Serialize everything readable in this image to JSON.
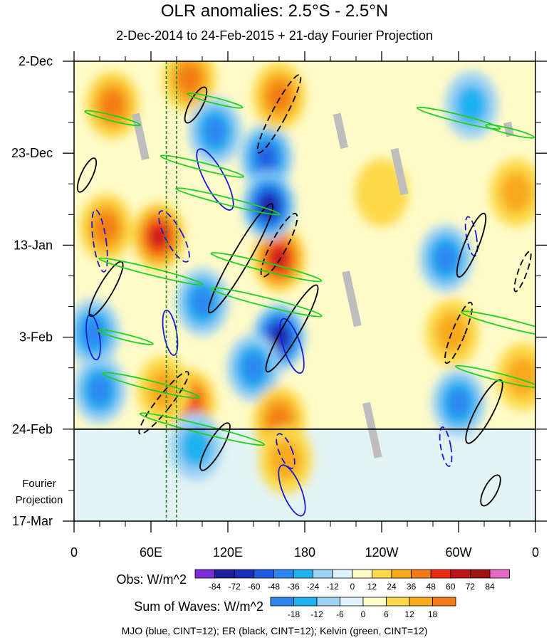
{
  "chart_data": {
    "type": "heatmap",
    "title": "OLR anomalies: 2.5°S - 2.5°N",
    "subtitle": "2-Dec-2014 to 24-Feb-2015 + 21-day Fourier Projection",
    "x_tick_labels": [
      "0",
      "60E",
      "120E",
      "180",
      "120W",
      "60W",
      "0"
    ],
    "x_ticks_lon": [
      0,
      60,
      120,
      180,
      240,
      300,
      360
    ],
    "xlim": [
      0,
      360
    ],
    "y_tick_labels": [
      "2-Dec",
      "23-Dec",
      "13-Jan",
      "3-Feb",
      "24-Feb",
      "17-Mar"
    ],
    "y_ticks_day": [
      0,
      21,
      42,
      63,
      84,
      105
    ],
    "ylim_days": [
      0,
      105
    ],
    "projection_start_day": 84,
    "projection_label_lines": [
      "Fourier",
      "Projection"
    ],
    "reference_lines_lon": [
      72,
      80
    ],
    "reference_line_color": "#2e8b2e",
    "legend_obs": {
      "label": "Obs: W/m^2",
      "values": [
        -84,
        -72,
        -60,
        -48,
        -36,
        -24,
        -12,
        0,
        12,
        24,
        36,
        48,
        60,
        72,
        84
      ],
      "colors": [
        "#7b2cd8",
        "#1e1e9c",
        "#1a2fb8",
        "#1f5be0",
        "#2e86f0",
        "#1fb1f0",
        "#9ed2f5",
        "#dff2fb",
        "#fffbc8",
        "#fcd94a",
        "#f8a91c",
        "#f27a18",
        "#ee2a12",
        "#c2121a",
        "#9c1414",
        "#e868c8"
      ]
    },
    "legend_waves": {
      "label": "Sum of Waves: W/m^2",
      "values": [
        -18,
        -12,
        -6,
        0,
        6,
        12,
        18
      ],
      "colors": [
        "#2e86f0",
        "#1fb1f0",
        "#9ed2f5",
        "#dff2fb",
        "#fffbc8",
        "#fcd94a",
        "#f8a91c",
        "#f27a18"
      ]
    },
    "wave_colors": {
      "mjo": "#1a1ad6",
      "er": "#000000",
      "kelvin": "#1fd11f"
    },
    "anomaly_blobs": [
      {
        "lon": 30,
        "day": 10,
        "v": 30
      },
      {
        "lon": 90,
        "day": 4,
        "v": 36
      },
      {
        "lon": 110,
        "day": 16,
        "v": -36
      },
      {
        "lon": 150,
        "day": 22,
        "v": -48
      },
      {
        "lon": 160,
        "day": 8,
        "v": 30
      },
      {
        "lon": 66,
        "day": 40,
        "v": 60
      },
      {
        "lon": 25,
        "day": 38,
        "v": 36
      },
      {
        "lon": 160,
        "day": 45,
        "v": 60
      },
      {
        "lon": 152,
        "day": 33,
        "v": -72
      },
      {
        "lon": 100,
        "day": 55,
        "v": -30
      },
      {
        "lon": 160,
        "day": 63,
        "v": -72
      },
      {
        "lon": 140,
        "day": 70,
        "v": -36
      },
      {
        "lon": 15,
        "day": 62,
        "v": -36
      },
      {
        "lon": 20,
        "day": 75,
        "v": -30
      },
      {
        "lon": 90,
        "day": 78,
        "v": 48
      },
      {
        "lon": 160,
        "day": 82,
        "v": 36
      },
      {
        "lon": 70,
        "day": 75,
        "v": 24
      },
      {
        "lon": 290,
        "day": 45,
        "v": -36
      },
      {
        "lon": 295,
        "day": 62,
        "v": 24
      },
      {
        "lon": 300,
        "day": 78,
        "v": -30
      },
      {
        "lon": 345,
        "day": 30,
        "v": 24
      },
      {
        "lon": 350,
        "day": 72,
        "v": 18
      },
      {
        "lon": 310,
        "day": 10,
        "v": -24
      },
      {
        "lon": 240,
        "day": 30,
        "v": 12
      },
      {
        "lon": 165,
        "day": 91,
        "v": 24
      },
      {
        "lon": 95,
        "day": 88,
        "v": -18
      }
    ],
    "mjo_contours": [
      {
        "lon": 110,
        "day": 27,
        "rx": 14,
        "ry": 48,
        "rot": -28,
        "dashed": false
      },
      {
        "lon": 78,
        "day": 40,
        "rx": 12,
        "ry": 40,
        "rot": -28,
        "dashed": true
      },
      {
        "lon": 15,
        "day": 63,
        "rx": 9,
        "ry": 32,
        "rot": -8,
        "dashed": false
      },
      {
        "lon": 20,
        "day": 41,
        "rx": 9,
        "ry": 44,
        "rot": -8,
        "dashed": true
      },
      {
        "lon": 75,
        "day": 62,
        "rx": 9,
        "ry": 32,
        "rot": -10,
        "dashed": false
      },
      {
        "lon": 170,
        "day": 98,
        "rx": 13,
        "ry": 38,
        "rot": -22,
        "dashed": false
      },
      {
        "lon": 165,
        "day": 89,
        "rx": 9,
        "ry": 26,
        "rot": -22,
        "dashed": true
      },
      {
        "lon": 290,
        "day": 88,
        "rx": 7,
        "ry": 28,
        "rot": -10,
        "dashed": true
      },
      {
        "lon": 310,
        "day": 40,
        "rx": 7,
        "ry": 28,
        "rot": -10,
        "dashed": true
      },
      {
        "lon": 170,
        "day": 65,
        "rx": 12,
        "ry": 40,
        "rot": -18,
        "dashed": false
      }
    ],
    "er_contours": [
      {
        "lon": 95,
        "day": 10,
        "rx": 9,
        "ry": 28,
        "rot": 28,
        "dashed": false
      },
      {
        "lon": 160,
        "day": 12,
        "rx": 10,
        "ry": 62,
        "rot": 28,
        "dashed": true
      },
      {
        "lon": 160,
        "day": 42,
        "rx": 11,
        "ry": 50,
        "rot": 28,
        "dashed": true
      },
      {
        "lon": 130,
        "day": 45,
        "rx": 12,
        "ry": 88,
        "rot": 30,
        "dashed": false
      },
      {
        "lon": 170,
        "day": 61,
        "rx": 12,
        "ry": 70,
        "rot": 30,
        "dashed": false
      },
      {
        "lon": 70,
        "day": 78,
        "rx": 10,
        "ry": 55,
        "rot": 38,
        "dashed": true
      },
      {
        "lon": 25,
        "day": 52,
        "rx": 10,
        "ry": 44,
        "rot": 30,
        "dashed": false
      },
      {
        "lon": 310,
        "day": 42,
        "rx": 10,
        "ry": 48,
        "rot": 22,
        "dashed": false
      },
      {
        "lon": 300,
        "day": 62,
        "rx": 9,
        "ry": 46,
        "rot": 22,
        "dashed": true
      },
      {
        "lon": 320,
        "day": 80,
        "rx": 12,
        "ry": 50,
        "rot": 28,
        "dashed": false
      },
      {
        "lon": 350,
        "day": 48,
        "rx": 6,
        "ry": 30,
        "rot": 20,
        "dashed": true
      },
      {
        "lon": 325,
        "day": 98,
        "rx": 9,
        "ry": 24,
        "rot": 28,
        "dashed": false
      },
      {
        "lon": 110,
        "day": 88,
        "rx": 10,
        "ry": 38,
        "rot": 30,
        "dashed": false
      },
      {
        "lon": 10,
        "day": 26,
        "rx": 8,
        "ry": 26,
        "rot": 25,
        "dashed": false
      }
    ],
    "kelvin_contours": [
      {
        "lon": 30,
        "day": 13,
        "len": 80,
        "w": 4,
        "dashed": false
      },
      {
        "lon": 110,
        "day": 9,
        "len": 80,
        "w": 4,
        "dashed": false
      },
      {
        "lon": 100,
        "day": 24,
        "len": 120,
        "w": 5,
        "dashed": false
      },
      {
        "lon": 120,
        "day": 32,
        "len": 150,
        "w": 5,
        "dashed": false
      },
      {
        "lon": 150,
        "day": 47,
        "len": 160,
        "w": 6,
        "dashed": false
      },
      {
        "lon": 150,
        "day": 55,
        "len": 160,
        "w": 6,
        "dashed": false
      },
      {
        "lon": 60,
        "day": 48,
        "len": 150,
        "w": 5,
        "dashed": false
      },
      {
        "lon": 40,
        "day": 63,
        "len": 80,
        "w": 4,
        "dashed": false
      },
      {
        "lon": 60,
        "day": 74,
        "len": 140,
        "w": 6,
        "dashed": false
      },
      {
        "lon": 100,
        "day": 84,
        "len": 180,
        "w": 6,
        "dashed": false
      },
      {
        "lon": 300,
        "day": 13,
        "len": 120,
        "w": 5,
        "dashed": false
      },
      {
        "lon": 340,
        "day": 60,
        "len": 140,
        "w": 6,
        "dashed": false
      },
      {
        "lon": 330,
        "day": 72,
        "len": 120,
        "w": 5,
        "dashed": false
      },
      {
        "lon": 340,
        "day": 16,
        "len": 70,
        "w": 4,
        "dashed": false
      }
    ],
    "missing_bands": [
      {
        "lon": 48,
        "day": 12,
        "len": 40
      },
      {
        "lon": 205,
        "day": 12,
        "len": 30
      },
      {
        "lon": 212,
        "day": 48,
        "len": 48
      },
      {
        "lon": 228,
        "day": 78,
        "len": 48
      },
      {
        "lon": 250,
        "day": 20,
        "len": 40
      },
      {
        "lon": 338,
        "day": 14,
        "len": 12
      }
    ],
    "footnote": "MJO (blue, CINT=12); ER (black, CINT=12); Kelvin (green, CINT=12)"
  }
}
